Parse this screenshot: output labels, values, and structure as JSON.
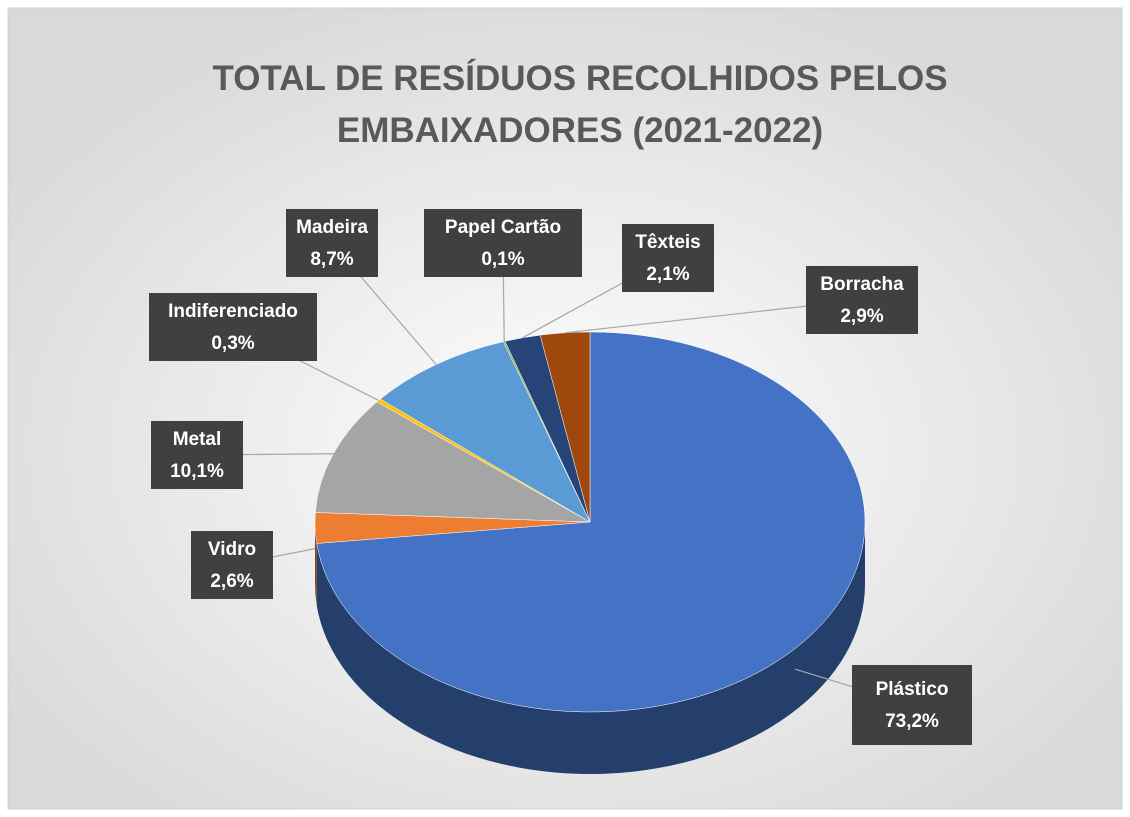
{
  "chart_data": {
    "type": "pie",
    "title": [
      "TOTAL DE RESÍDUOS RECOLHIDOS PELOS",
      "EMBAIXADORES (2021-2022)"
    ],
    "categories": [
      "Plástico",
      "Vidro",
      "Metal",
      "Indiferenciado",
      "Madeira",
      "Papel Cartão",
      "Têxteis",
      "Borracha"
    ],
    "values": [
      73.2,
      2.6,
      10.1,
      0.3,
      8.7,
      0.1,
      2.1,
      2.9
    ],
    "value_labels": [
      "73,2%",
      "2,6%",
      "10,1%",
      "0,3%",
      "8,7%",
      "0,1%",
      "2,1%",
      "2,9%"
    ],
    "colors": [
      "#4472c4",
      "#ed7d31",
      "#a5a5a5",
      "#ffc000",
      "#5b9bd5",
      "#70ad47",
      "#264478",
      "#9e480e"
    ]
  }
}
